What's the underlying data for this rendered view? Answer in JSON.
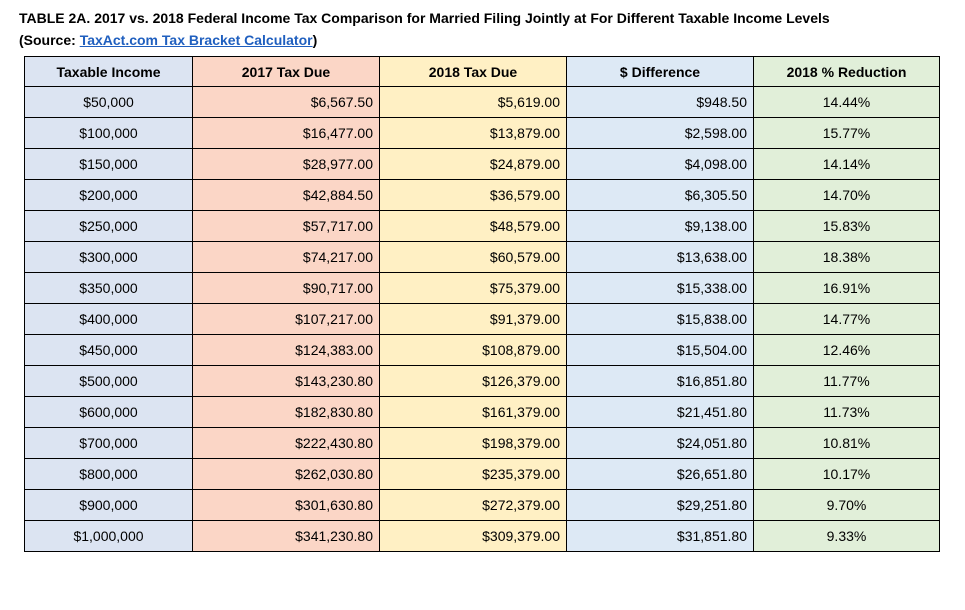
{
  "title": "TABLE 2A. 2017  vs. 2018  Federal Income Tax Comparison for Married Filing Jointly at For Different Taxable Income Levels",
  "source_prefix": "(Source: ",
  "source_link": "TaxAct.com Tax Bracket Calculator",
  "source_suffix": ")",
  "headers": [
    "Taxable Income",
    "2017 Tax Due",
    "2018 Tax Due",
    "$ Difference",
    "2018 % Reduction"
  ],
  "rows": [
    [
      "$50,000",
      "$6,567.50",
      "$5,619.00",
      "$948.50",
      "14.44%"
    ],
    [
      "$100,000",
      "$16,477.00",
      "$13,879.00",
      "$2,598.00",
      "15.77%"
    ],
    [
      "$150,000",
      "$28,977.00",
      "$24,879.00",
      "$4,098.00",
      "14.14%"
    ],
    [
      "$200,000",
      "$42,884.50",
      "$36,579.00",
      "$6,305.50",
      "14.70%"
    ],
    [
      "$250,000",
      "$57,717.00",
      "$48,579.00",
      "$9,138.00",
      "15.83%"
    ],
    [
      "$300,000",
      "$74,217.00",
      "$60,579.00",
      "$13,638.00",
      "18.38%"
    ],
    [
      "$350,000",
      "$90,717.00",
      "$75,379.00",
      "$15,338.00",
      "16.91%"
    ],
    [
      "$400,000",
      "$107,217.00",
      "$91,379.00",
      "$15,838.00",
      "14.77%"
    ],
    [
      "$450,000",
      "$124,383.00",
      "$108,879.00",
      "$15,504.00",
      "12.46%"
    ],
    [
      "$500,000",
      "$143,230.80",
      "$126,379.00",
      "$16,851.80",
      "11.77%"
    ],
    [
      "$600,000",
      "$182,830.80",
      "$161,379.00",
      "$21,451.80",
      "11.73%"
    ],
    [
      "$700,000",
      "$222,430.80",
      "$198,379.00",
      "$24,051.80",
      "10.81%"
    ],
    [
      "$800,000",
      "$262,030.80",
      "$235,379.00",
      "$26,651.80",
      "10.17%"
    ],
    [
      "$900,000",
      "$301,630.80",
      "$272,379.00",
      "$29,251.80",
      "9.70%"
    ],
    [
      "$1,000,000",
      "$341,230.80",
      "$309,379.00",
      "$31,851.80",
      "9.33%"
    ]
  ],
  "colors": {
    "income": "#dce4f2",
    "tax2017": "#fbd6c6",
    "tax2018": "#fff0c4",
    "difference": "#dde9f5",
    "reduction": "#e1efd9",
    "link": "#1f5fbf"
  }
}
